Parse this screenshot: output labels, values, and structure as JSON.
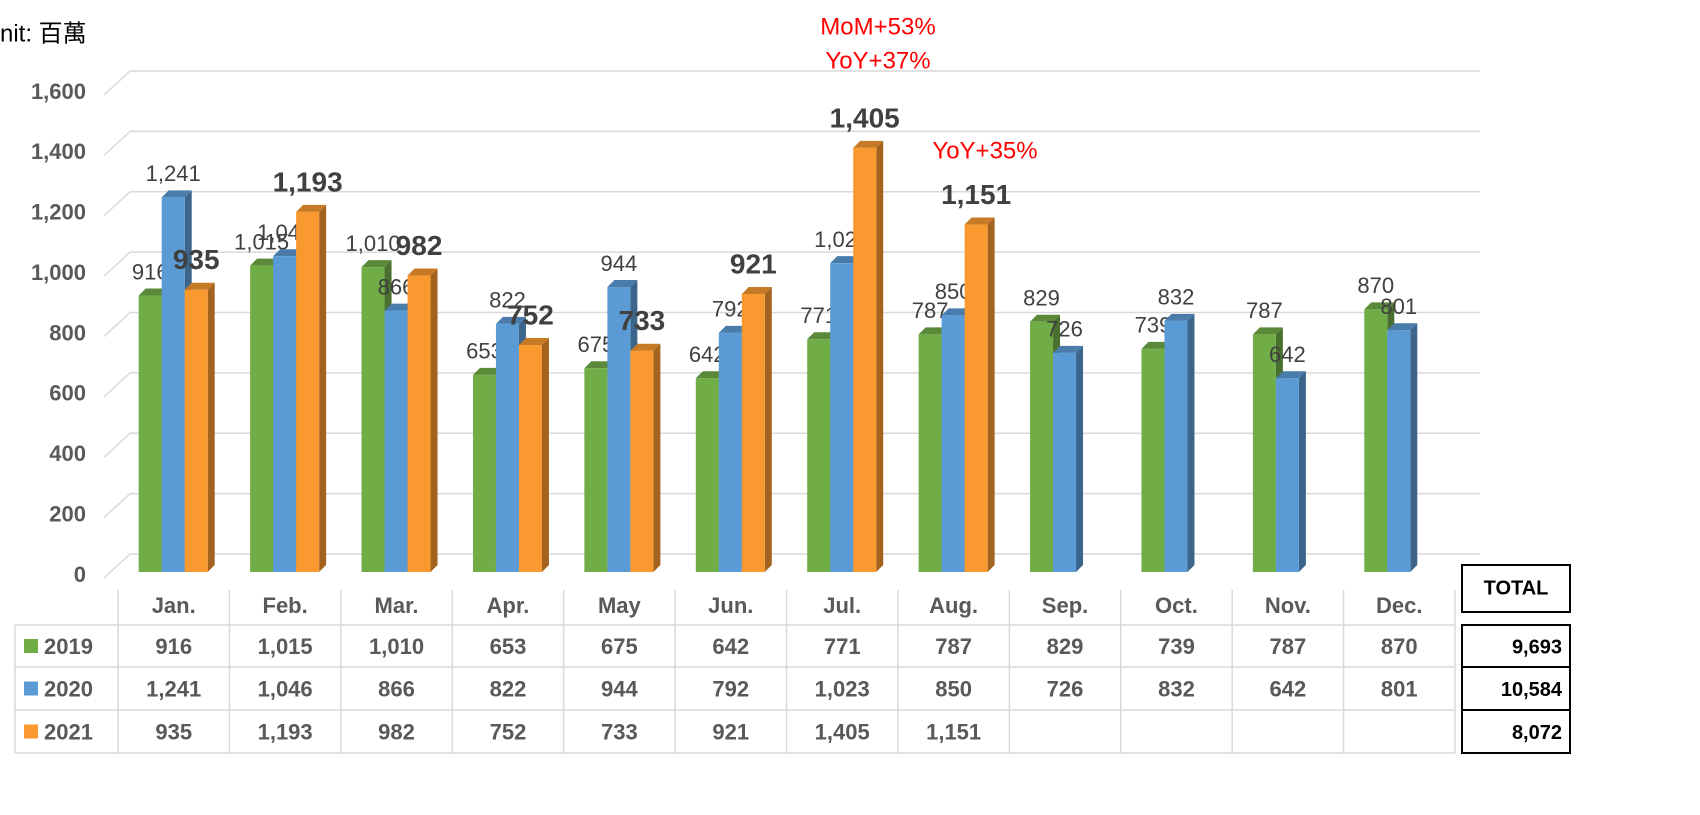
{
  "chart_data": {
    "type": "bar",
    "unit_label": "nit: 百萬",
    "categories": [
      "Jan.",
      "Feb.",
      "Mar.",
      "Apr.",
      "May",
      "Jun.",
      "Jul.",
      "Aug.",
      "Sep.",
      "Oct.",
      "Nov.",
      "Dec."
    ],
    "series": [
      {
        "name": "2019",
        "color": "#70ad47",
        "values": [
          916,
          1015,
          1010,
          653,
          675,
          642,
          771,
          787,
          829,
          739,
          787,
          870
        ],
        "value_labels": [
          "916",
          "1,015",
          "1,010",
          "653",
          "675",
          "642",
          "771",
          "787",
          "829",
          "739",
          "787",
          "870"
        ]
      },
      {
        "name": "2020",
        "color": "#5b9bd5",
        "values": [
          1241,
          1046,
          866,
          822,
          944,
          792,
          1023,
          850,
          726,
          832,
          642,
          801
        ],
        "value_labels": [
          "1,241",
          "1,046",
          "866",
          "822",
          "944",
          "792",
          "1,023",
          "850",
          "726",
          "832",
          "642",
          "801"
        ]
      },
      {
        "name": "2021",
        "color": "#f9992f",
        "values": [
          935,
          1193,
          982,
          752,
          733,
          921,
          1405,
          1151,
          null,
          null,
          null,
          null
        ],
        "value_labels": [
          "935",
          "1,193",
          "982",
          "752",
          "733",
          "921",
          "1,405",
          "1,151",
          null,
          null,
          null,
          null
        ]
      }
    ],
    "ylim": [
      0,
      1600
    ],
    "yticks": [
      0,
      200,
      400,
      600,
      800,
      {
        "value": 1000,
        "label": "1,000"
      },
      {
        "value": 1200,
        "label": "1,200"
      },
      {
        "value": 1400,
        "label": "1,400"
      },
      {
        "value": 1600,
        "label": "1,600"
      }
    ],
    "grid": true,
    "annotations": [
      "MoM+53%",
      "YoY+37%",
      "YoY+35%"
    ],
    "total_header": "TOTAL",
    "totals": [
      "9,693",
      "10,584",
      "8,072"
    ]
  }
}
